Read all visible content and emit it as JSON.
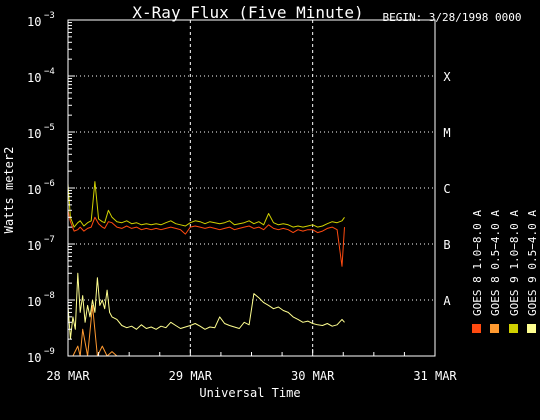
{
  "chart_data": {
    "type": "line",
    "title": "X-Ray Flux (Five Minute)",
    "begin_label": "BEGIN: 3/28/1998 0000",
    "xlabel": "Universal Time",
    "ylabel": "Watts meter2",
    "yscale": "log",
    "ylim": [
      1e-09,
      0.001
    ],
    "xlim": [
      0,
      3
    ],
    "x_unit": "days since 28 MAR 1998 00:00 UT",
    "x_ticks": [
      {
        "x": 0,
        "label": "28 MAR"
      },
      {
        "x": 1,
        "label": "29 MAR"
      },
      {
        "x": 2,
        "label": "30 MAR"
      },
      {
        "x": 3,
        "label": "31 MAR"
      }
    ],
    "y_ticks": [
      {
        "exp": -9,
        "base": "10",
        "sup": "−9"
      },
      {
        "exp": -8,
        "base": "10",
        "sup": "−8"
      },
      {
        "exp": -7,
        "base": "10",
        "sup": "−7"
      },
      {
        "exp": -6,
        "base": "10",
        "sup": "−6"
      },
      {
        "exp": -5,
        "base": "10",
        "sup": "−5"
      },
      {
        "exp": -4,
        "base": "10",
        "sup": "−4"
      },
      {
        "exp": -3,
        "base": "10",
        "sup": "−3"
      }
    ],
    "flare_classes": [
      {
        "label": "A",
        "exp": -8
      },
      {
        "label": "B",
        "exp": -7
      },
      {
        "label": "C",
        "exp": -6
      },
      {
        "label": "M",
        "exp": -5
      },
      {
        "label": "X",
        "exp": -4
      }
    ],
    "grid": true,
    "legend_position": "right, vertical",
    "legend": [
      {
        "label": "GOES 8 1.0−8.0 A",
        "color": "#ff4a10"
      },
      {
        "label": "GOES 8 0.5−4.0 A",
        "color": "#ff9a30"
      },
      {
        "label": "GOES 9 1.0−8.0 A",
        "color": "#d0d000"
      },
      {
        "label": "GOES 9 0.5−4.0 A",
        "color": "#ffff90"
      }
    ],
    "series": [
      {
        "name": "GOES 8 1.0−8.0 A",
        "color": "#ff4a10",
        "x": [
          0.0,
          0.02,
          0.05,
          0.08,
          0.1,
          0.13,
          0.16,
          0.19,
          0.22,
          0.25,
          0.28,
          0.3,
          0.33,
          0.36,
          0.4,
          0.44,
          0.48,
          0.52,
          0.56,
          0.6,
          0.64,
          0.68,
          0.72,
          0.76,
          0.8,
          0.84,
          0.88,
          0.92,
          0.96,
          1.0,
          1.04,
          1.08,
          1.12,
          1.16,
          1.2,
          1.24,
          1.28,
          1.32,
          1.36,
          1.4,
          1.44,
          1.48,
          1.52,
          1.56,
          1.6,
          1.64,
          1.68,
          1.72,
          1.76,
          1.8,
          1.84,
          1.88,
          1.92,
          1.96,
          2.0,
          2.04,
          2.08,
          2.12,
          2.16,
          2.2,
          2.24,
          2.26
        ],
        "y": [
          4e-07,
          2.5e-07,
          1.7e-07,
          1.8e-07,
          2e-07,
          1.7e-07,
          1.9e-07,
          2e-07,
          3e-07,
          2.3e-07,
          2e-07,
          1.9e-07,
          2.5e-07,
          2.4e-07,
          2e-07,
          1.9e-07,
          2.1e-07,
          1.9e-07,
          2e-07,
          1.8e-07,
          1.9e-07,
          1.8e-07,
          1.9e-07,
          1.8e-07,
          1.9e-07,
          2e-07,
          1.9e-07,
          1.8e-07,
          1.5e-07,
          2e-07,
          2.1e-07,
          2e-07,
          1.9e-07,
          2e-07,
          1.9e-07,
          1.8e-07,
          1.9e-07,
          2e-07,
          1.8e-07,
          1.9e-07,
          2e-07,
          2.1e-07,
          1.9e-07,
          2e-07,
          1.8e-07,
          2.2e-07,
          1.9e-07,
          1.8e-07,
          1.9e-07,
          1.8e-07,
          1.6e-07,
          1.8e-07,
          1.7e-07,
          1.8e-07,
          1.8e-07,
          1.6e-07,
          1.7e-07,
          1.9e-07,
          2e-07,
          1.8e-07,
          4e-08,
          2e-07
        ]
      },
      {
        "name": "GOES 8 0.5−4.0 A",
        "color": "#ff9a30",
        "x": [
          0.0,
          0.04,
          0.08,
          0.1,
          0.12,
          0.16,
          0.2,
          0.24,
          0.28,
          0.32,
          0.36,
          0.4,
          0.44,
          0.48,
          0.52,
          0.56,
          0.6,
          0.64,
          0.7,
          0.8,
          1.0,
          1.2,
          1.4,
          1.6,
          1.8,
          2.0,
          2.2,
          2.26
        ],
        "y": [
          1e-09,
          1e-09,
          1.5e-09,
          1e-09,
          3e-09,
          1e-09,
          8e-09,
          1e-09,
          1.5e-09,
          1e-09,
          1.2e-09,
          1e-09,
          1e-09,
          1e-09,
          1e-09,
          1e-09,
          1e-09,
          1e-09,
          1e-09,
          1e-09,
          1e-09,
          1e-09,
          1e-09,
          1e-09,
          1e-09,
          1e-09,
          1e-09,
          1e-09
        ]
      },
      {
        "name": "GOES 9 1.0−8.0 A",
        "color": "#d0d000",
        "x": [
          0.0,
          0.02,
          0.05,
          0.08,
          0.1,
          0.13,
          0.16,
          0.19,
          0.22,
          0.25,
          0.28,
          0.3,
          0.33,
          0.36,
          0.4,
          0.44,
          0.48,
          0.52,
          0.56,
          0.6,
          0.64,
          0.68,
          0.72,
          0.76,
          0.8,
          0.84,
          0.88,
          0.92,
          0.96,
          1.0,
          1.04,
          1.08,
          1.12,
          1.16,
          1.2,
          1.24,
          1.28,
          1.32,
          1.36,
          1.4,
          1.44,
          1.48,
          1.52,
          1.56,
          1.6,
          1.64,
          1.68,
          1.72,
          1.76,
          1.8,
          1.84,
          1.88,
          1.92,
          1.96,
          2.0,
          2.04,
          2.08,
          2.12,
          2.16,
          2.2,
          2.24,
          2.26
        ],
        "y": [
          1.2e-06,
          3e-07,
          2e-07,
          2.4e-07,
          2.6e-07,
          2.1e-07,
          2.4e-07,
          2.6e-07,
          1.3e-06,
          2.8e-07,
          2.5e-07,
          2.4e-07,
          4e-07,
          3e-07,
          2.5e-07,
          2.4e-07,
          2.6e-07,
          2.3e-07,
          2.4e-07,
          2.2e-07,
          2.3e-07,
          2.2e-07,
          2.3e-07,
          2.2e-07,
          2.4e-07,
          2.6e-07,
          2.3e-07,
          2.2e-07,
          2.1e-07,
          2.4e-07,
          2.6e-07,
          2.5e-07,
          2.3e-07,
          2.5e-07,
          2.4e-07,
          2.3e-07,
          2.4e-07,
          2.6e-07,
          2.2e-07,
          2.3e-07,
          2.4e-07,
          2.6e-07,
          2.3e-07,
          2.5e-07,
          2.2e-07,
          3.5e-07,
          2.4e-07,
          2.2e-07,
          2.3e-07,
          2.2e-07,
          2e-07,
          2.1e-07,
          2e-07,
          2.1e-07,
          2.2e-07,
          2e-07,
          2.1e-07,
          2.3e-07,
          2.5e-07,
          2.4e-07,
          2.6e-07,
          3e-07
        ]
      },
      {
        "name": "GOES 9 0.5−4.0 A",
        "color": "#ffff90",
        "x": [
          0.0,
          0.02,
          0.04,
          0.06,
          0.08,
          0.1,
          0.12,
          0.14,
          0.16,
          0.18,
          0.2,
          0.22,
          0.24,
          0.26,
          0.28,
          0.3,
          0.32,
          0.34,
          0.36,
          0.4,
          0.44,
          0.48,
          0.52,
          0.56,
          0.6,
          0.64,
          0.68,
          0.72,
          0.76,
          0.8,
          0.84,
          0.88,
          0.92,
          0.96,
          1.0,
          1.04,
          1.08,
          1.12,
          1.16,
          1.2,
          1.24,
          1.28,
          1.32,
          1.36,
          1.4,
          1.44,
          1.48,
          1.52,
          1.56,
          1.6,
          1.64,
          1.68,
          1.72,
          1.76,
          1.8,
          1.84,
          1.88,
          1.92,
          1.96,
          2.0,
          2.04,
          2.08,
          2.12,
          2.16,
          2.2,
          2.24,
          2.26
        ],
        "y": [
          8e-09,
          2e-09,
          5e-09,
          3e-09,
          3e-08,
          6e-09,
          1.2e-08,
          4e-09,
          8e-09,
          5e-09,
          1e-08,
          6e-09,
          2.5e-08,
          8e-09,
          1e-08,
          7e-09,
          1.5e-08,
          6e-09,
          5e-09,
          4.5e-09,
          3.5e-09,
          3.2e-09,
          3.4e-09,
          3e-09,
          3.6e-09,
          3.1e-09,
          3.3e-09,
          3e-09,
          3.4e-09,
          3.2e-09,
          4e-09,
          3.5e-09,
          3.1e-09,
          3.3e-09,
          3.5e-09,
          3.8e-09,
          3.4e-09,
          3e-09,
          3.3e-09,
          3.2e-09,
          5e-09,
          3.8e-09,
          3.5e-09,
          3.3e-09,
          3.1e-09,
          4e-09,
          3.6e-09,
          1.3e-08,
          1.1e-08,
          9e-09,
          8e-09,
          7e-09,
          7.5e-09,
          6.5e-09,
          6e-09,
          5e-09,
          4.5e-09,
          4e-09,
          4.2e-09,
          3.8e-09,
          3.6e-09,
          3.5e-09,
          3.8e-09,
          3.4e-09,
          3.6e-09,
          4.5e-09,
          4e-09
        ]
      }
    ]
  }
}
